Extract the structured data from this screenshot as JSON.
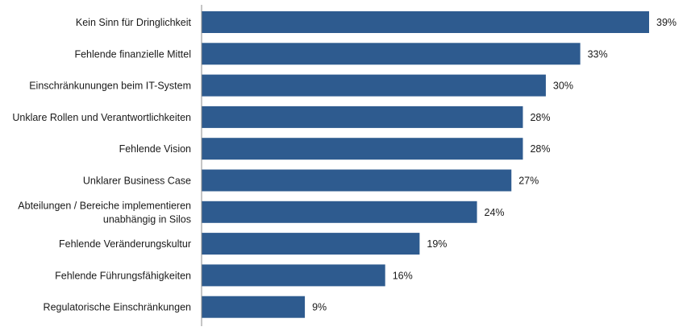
{
  "chart_data": {
    "type": "bar",
    "orientation": "horizontal",
    "categories": [
      "Kein Sinn für Dringlichkeit",
      "Fehlende finanzielle Mittel",
      "Einschränkunungen beim IT-System",
      "Unklare Rollen und Verantwortlichkeiten",
      "Fehlende Vision",
      "Unklarer Business Case",
      "Abteilungen / Bereiche implementieren unabhängig in Silos",
      "Fehlende Veränderungskultur",
      "Fehlende Führungsfähigkeiten",
      "Regulatorische Einschränkungen"
    ],
    "values": [
      39,
      33,
      30,
      28,
      28,
      27,
      24,
      19,
      16,
      9
    ],
    "value_labels": [
      "39%",
      "33%",
      "30%",
      "28%",
      "28%",
      "27%",
      "24%",
      "19%",
      "16%",
      "9%"
    ],
    "xlim": [
      0,
      39
    ],
    "grid": false,
    "legend": "none",
    "colors": {
      "bar": "#2e5b8f",
      "axis": "#8c8c8c",
      "text": "#1a1a1a"
    }
  }
}
